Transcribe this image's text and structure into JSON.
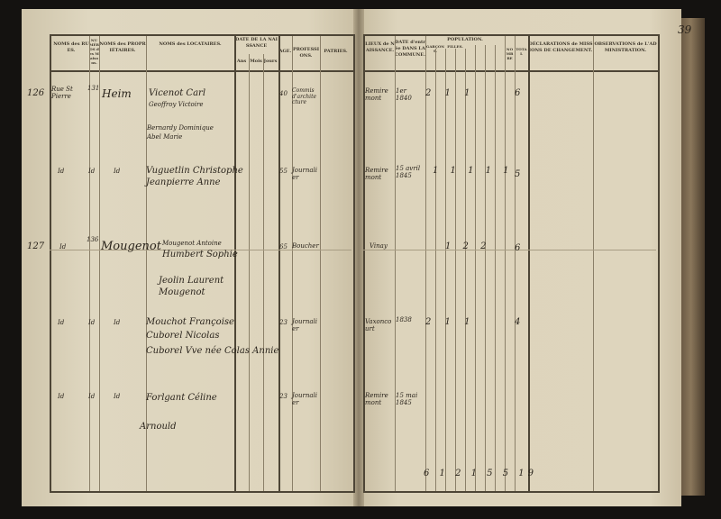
{
  "page_number": "39",
  "left_headers": {
    "rues": "NOMS des RUES.",
    "numeros": "NUMÉROS des Maisons.",
    "proprietaires": "NOMS des PROPRIÉTAIRES.",
    "locataires": "NOMS des LOCATAIRES.",
    "naissance": "DATE DE LA NAISSANCE",
    "ans": "Ans",
    "mois": "Mois",
    "jours": "Jours",
    "age": "AGE.",
    "professions": "PROFESSIONS.",
    "patries": "PATRIES."
  },
  "right_headers": {
    "lieux": "LIEUX de NAISSANCE.",
    "date": "DATE d'entrée DANS LA COMMUNE.",
    "population": "POPULATION.",
    "garcons": "GARÇONS.",
    "filles": "FILLES.",
    "nombre": "NOMBRE",
    "total": "TOTAL",
    "declarations": "DÉCLARATIONS de MISSIONS DE CHANGEMENT.",
    "observations": "OBSERVATIONS de L'ADMINISTRATION."
  },
  "entries": [
    {
      "num": "126",
      "street": "Rue St Pierre",
      "house": "131",
      "owner": "Heim",
      "tenants": [
        "Vicenot Carl",
        "Geoffroy Victoire",
        "Bernardy Dominique",
        "Abel Marie"
      ],
      "age": "40",
      "profession": "Commis d'architecture",
      "place": "Remiremont",
      "date": "1er 1840",
      "counts": "2  1 1",
      "total": "6"
    },
    {
      "num": "",
      "street": "Id",
      "house": "Id",
      "owner": "Id",
      "tenants": [
        "Vuguetlin Christophe",
        "Jeanpierre Anne"
      ],
      "age": "55",
      "profession": "Journalier",
      "place": "Remiremont",
      "date": "15 avril 1845",
      "counts": "1 1 1 1 1",
      "total": "5"
    },
    {
      "num": "127",
      "street": "Id",
      "house": "136",
      "owner": "Mougenot",
      "tenants": [
        "Mougenot Antoine",
        "Humbert Sophie",
        "Jeolin Laurent",
        "Mougenot"
      ],
      "age": "65",
      "profession": "Boucher",
      "place": "Vinay",
      "date": "",
      "counts": "1  2 2",
      "total": "6"
    },
    {
      "num": "",
      "street": "Id",
      "house": "Id",
      "owner": "Id",
      "tenants": [
        "Mouchot Françoise",
        "Cuborel Nicolas",
        "Cuborel Vve née Colas Annie"
      ],
      "age": "23",
      "profession": "Journalier",
      "place": "Vaxoncourt",
      "date": "1838",
      "counts": "2  1 1",
      "total": "4"
    },
    {
      "num": "",
      "street": "Id",
      "house": "Id",
      "owner": "Id",
      "tenants": [
        "Forlgant Céline",
        "Arnould"
      ],
      "age": "23",
      "profession": "Journalier",
      "place": "Remiremont",
      "date": "15 mai 1845",
      "counts": "",
      "total": ""
    }
  ],
  "totals": "6 1 2 1 5 5   19"
}
